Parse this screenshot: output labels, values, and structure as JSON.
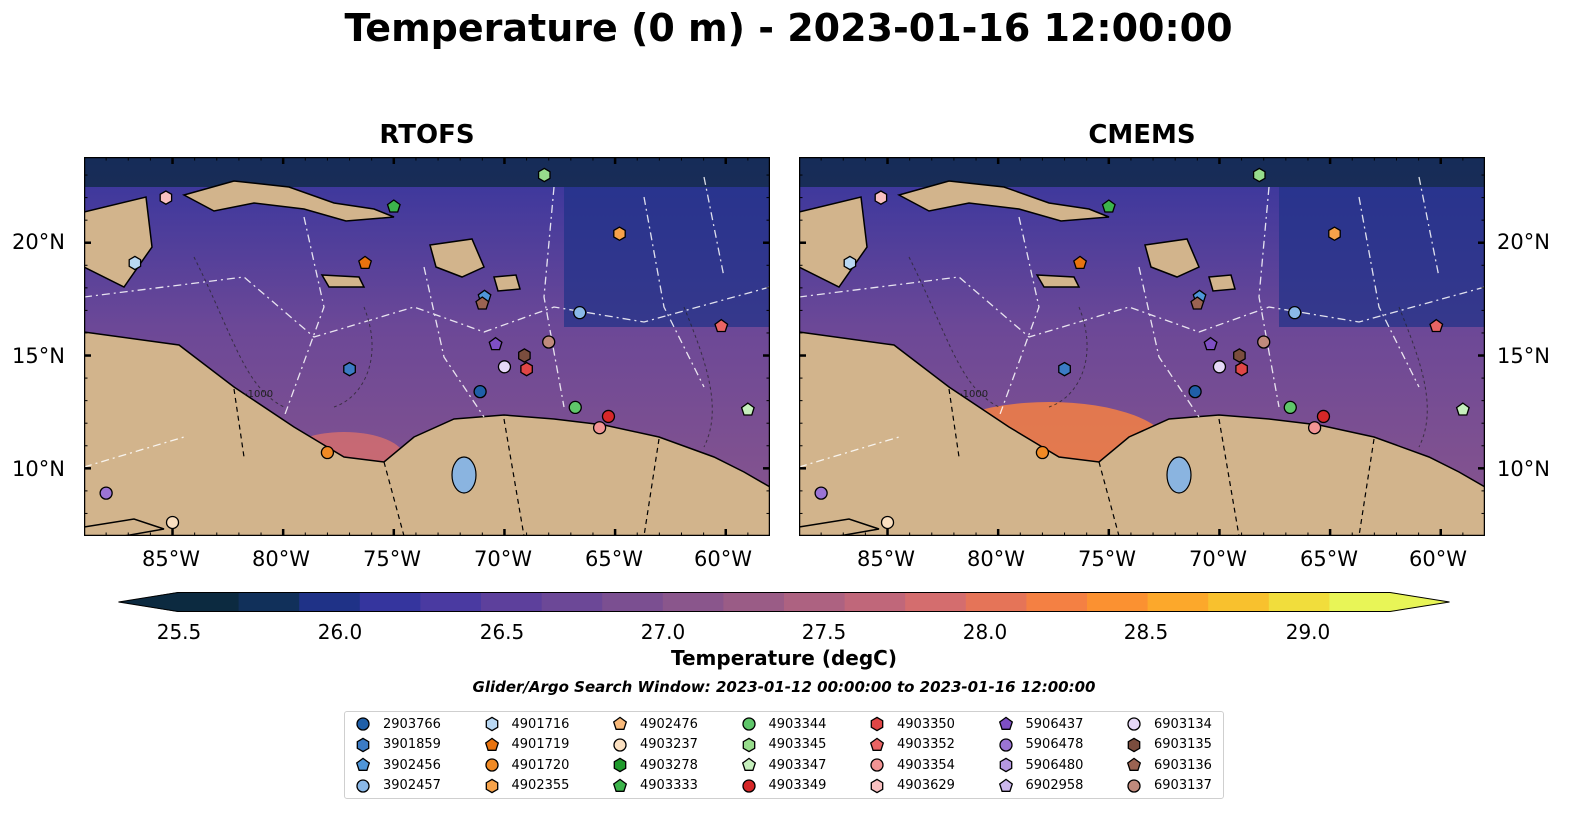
{
  "title": "Temperature (0 m) - 2023-01-16 12:00:00",
  "panels": [
    {
      "title": "RTOFS"
    },
    {
      "title": "CMEMS"
    }
  ],
  "lon_ticks": [
    "85°W",
    "80°W",
    "75°W",
    "70°W",
    "65°W",
    "60°W"
  ],
  "lat_ticks": [
    "20°N",
    "15°N",
    "10°N"
  ],
  "colorbar": {
    "label": "Temperature (degC)",
    "ticks": [
      "25.5",
      "26.0",
      "26.5",
      "27.0",
      "27.5",
      "28.0",
      "28.5",
      "29.0"
    ],
    "colors": [
      "#0c2a40",
      "#11305a",
      "#1f3287",
      "#35359e",
      "#4a3aa1",
      "#5d409c",
      "#6c4897",
      "#7b4f91",
      "#8a568c",
      "#9a5c86",
      "#ad6281",
      "#c0677a",
      "#d46d6e",
      "#e57458",
      "#f48043",
      "#fb9131",
      "#fca82b",
      "#f8c12e",
      "#f1dd3c",
      "#e8f557"
    ]
  },
  "search_window": "Glider/Argo Search Window: 2023-01-12 00:00:00 to 2023-01-16 12:00:00",
  "contour_label": "-1000",
  "legend": [
    {
      "id": "2903766",
      "shape": "circle",
      "color": "#1f5fa8"
    },
    {
      "id": "3901859",
      "shape": "hexagon",
      "color": "#3b7bc4"
    },
    {
      "id": "3902456",
      "shape": "pentagon",
      "color": "#4f96d9"
    },
    {
      "id": "3902457",
      "shape": "circle",
      "color": "#8ab8e8"
    },
    {
      "id": "4901716",
      "shape": "hexagon",
      "color": "#b9d8f3"
    },
    {
      "id": "4901719",
      "shape": "pentagon",
      "color": "#e8730f"
    },
    {
      "id": "4901720",
      "shape": "circle",
      "color": "#f18a24"
    },
    {
      "id": "4902355",
      "shape": "hexagon",
      "color": "#f6a24a"
    },
    {
      "id": "4902476",
      "shape": "pentagon",
      "color": "#f8b97a"
    },
    {
      "id": "4903237",
      "shape": "circle",
      "color": "#fbe0c1"
    },
    {
      "id": "4903278",
      "shape": "hexagon",
      "color": "#1f9a2c"
    },
    {
      "id": "4903333",
      "shape": "pentagon",
      "color": "#3cb44b"
    },
    {
      "id": "4903344",
      "shape": "circle",
      "color": "#5fc66a"
    },
    {
      "id": "4903345",
      "shape": "hexagon",
      "color": "#97dc8c"
    },
    {
      "id": "4903347",
      "shape": "pentagon",
      "color": "#c6f0bd"
    },
    {
      "id": "4903349",
      "shape": "circle",
      "color": "#d62728"
    },
    {
      "id": "4903350",
      "shape": "hexagon",
      "color": "#e04646"
    },
    {
      "id": "4903352",
      "shape": "pentagon",
      "color": "#ea6464"
    },
    {
      "id": "4903354",
      "shape": "circle",
      "color": "#f29494"
    },
    {
      "id": "4903629",
      "shape": "hexagon",
      "color": "#f9c1c1"
    },
    {
      "id": "5906437",
      "shape": "pentagon",
      "color": "#7e4fc4"
    },
    {
      "id": "5906478",
      "shape": "circle",
      "color": "#9b74d4"
    },
    {
      "id": "5906480",
      "shape": "hexagon",
      "color": "#b597e0"
    },
    {
      "id": "6902958",
      "shape": "pentagon",
      "color": "#cdb8ec"
    },
    {
      "id": "6903134",
      "shape": "circle",
      "color": "#e6d8f7"
    },
    {
      "id": "6903135",
      "shape": "hexagon",
      "color": "#7a4d3e"
    },
    {
      "id": "6903136",
      "shape": "pentagon",
      "color": "#9b6352"
    },
    {
      "id": "6903137",
      "shape": "circle",
      "color": "#c08a7c"
    }
  ],
  "platforms": [
    {
      "ref": "4903629",
      "lon": -85.3,
      "lat": 22.0
    },
    {
      "ref": "4903345",
      "lon": -68.2,
      "lat": 23.0
    },
    {
      "ref": "4903333",
      "lon": -75.0,
      "lat": 21.6
    },
    {
      "ref": "4902355",
      "lon": -64.8,
      "lat": 20.4
    },
    {
      "ref": "4901716",
      "lon": -86.7,
      "lat": 19.1
    },
    {
      "ref": "4901719",
      "lon": -76.3,
      "lat": 19.1
    },
    {
      "ref": "3902456",
      "lon": -70.9,
      "lat": 17.6
    },
    {
      "ref": "6903136",
      "lon": -71.0,
      "lat": 17.3
    },
    {
      "ref": "3902457",
      "lon": -66.6,
      "lat": 16.9
    },
    {
      "ref": "4903352",
      "lon": -60.2,
      "lat": 16.3
    },
    {
      "ref": "6903137",
      "lon": -68.0,
      "lat": 15.6
    },
    {
      "ref": "5906437",
      "lon": -70.4,
      "lat": 15.5
    },
    {
      "ref": "6903135",
      "lon": -69.1,
      "lat": 15.0
    },
    {
      "ref": "3901859",
      "lon": -77.0,
      "lat": 14.4
    },
    {
      "ref": "6903134",
      "lon": -70.0,
      "lat": 14.5
    },
    {
      "ref": "4903350",
      "lon": -69.0,
      "lat": 14.4
    },
    {
      "ref": "2903766",
      "lon": -71.1,
      "lat": 13.4
    },
    {
      "ref": "4903344",
      "lon": -66.8,
      "lat": 12.7
    },
    {
      "ref": "4903347",
      "lon": -59.0,
      "lat": 12.6
    },
    {
      "ref": "4903349",
      "lon": -65.3,
      "lat": 12.3
    },
    {
      "ref": "4903354",
      "lon": -65.7,
      "lat": 11.8
    },
    {
      "ref": "4901720",
      "lon": -78.0,
      "lat": 10.7
    },
    {
      "ref": "5906478",
      "lon": -88.0,
      "lat": 8.9
    },
    {
      "ref": "4903237",
      "lon": -85.0,
      "lat": 7.6
    }
  ]
}
